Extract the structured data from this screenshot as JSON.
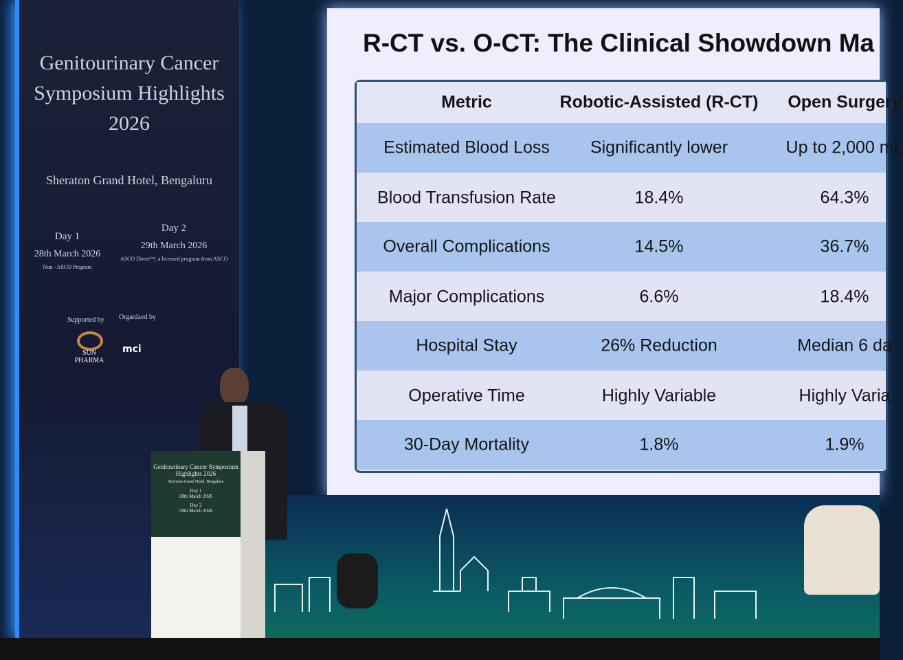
{
  "banner": {
    "title": "Genitourinary Cancer Symposium Highlights 2026",
    "venue": "Sheraton Grand Hotel, Bengaluru",
    "days": [
      {
        "day": "Day 1",
        "date": "28th March 2026",
        "note": "Non - ASCO Program"
      },
      {
        "day": "Day 2",
        "date": "29th March 2026",
        "note": "ASCO Direct™, a licensed program from ASCO"
      }
    ],
    "supported_by": "Supported by",
    "organized_by": "Organized by",
    "sponsor": "SUN PHARMA",
    "organizer": "mci"
  },
  "slide": {
    "title": "R-CT vs. O-CT: The Clinical Showdown Ma",
    "table": {
      "header": [
        "Metric",
        "Robotic-Assisted (R-CT)",
        "Open Surgery"
      ],
      "rows": [
        [
          "Estimated Blood Loss",
          "Significantly lower",
          "Up to 2,000 mL"
        ],
        [
          "Blood Transfusion Rate",
          "18.4%",
          "64.3%"
        ],
        [
          "Overall Complications",
          "14.5%",
          "36.7%"
        ],
        [
          "Major Complications",
          "6.6%",
          "18.4%"
        ],
        [
          "Hospital Stay",
          "26% Reduction",
          "Median 6 da"
        ],
        [
          "Operative Time",
          "Highly Variable",
          "Highly Varia"
        ],
        [
          "30-Day Mortality",
          "1.8%",
          "1.9%"
        ]
      ]
    }
  },
  "podium": {
    "title": "Genitourinary Cancer Symposium Highlights 2026",
    "venue": "Sheraton Grand Hotel, Bengaluru",
    "day1": "Day 1",
    "date1": "28th March 2026",
    "day2": "Day 2",
    "date2": "29th March 2026"
  }
}
